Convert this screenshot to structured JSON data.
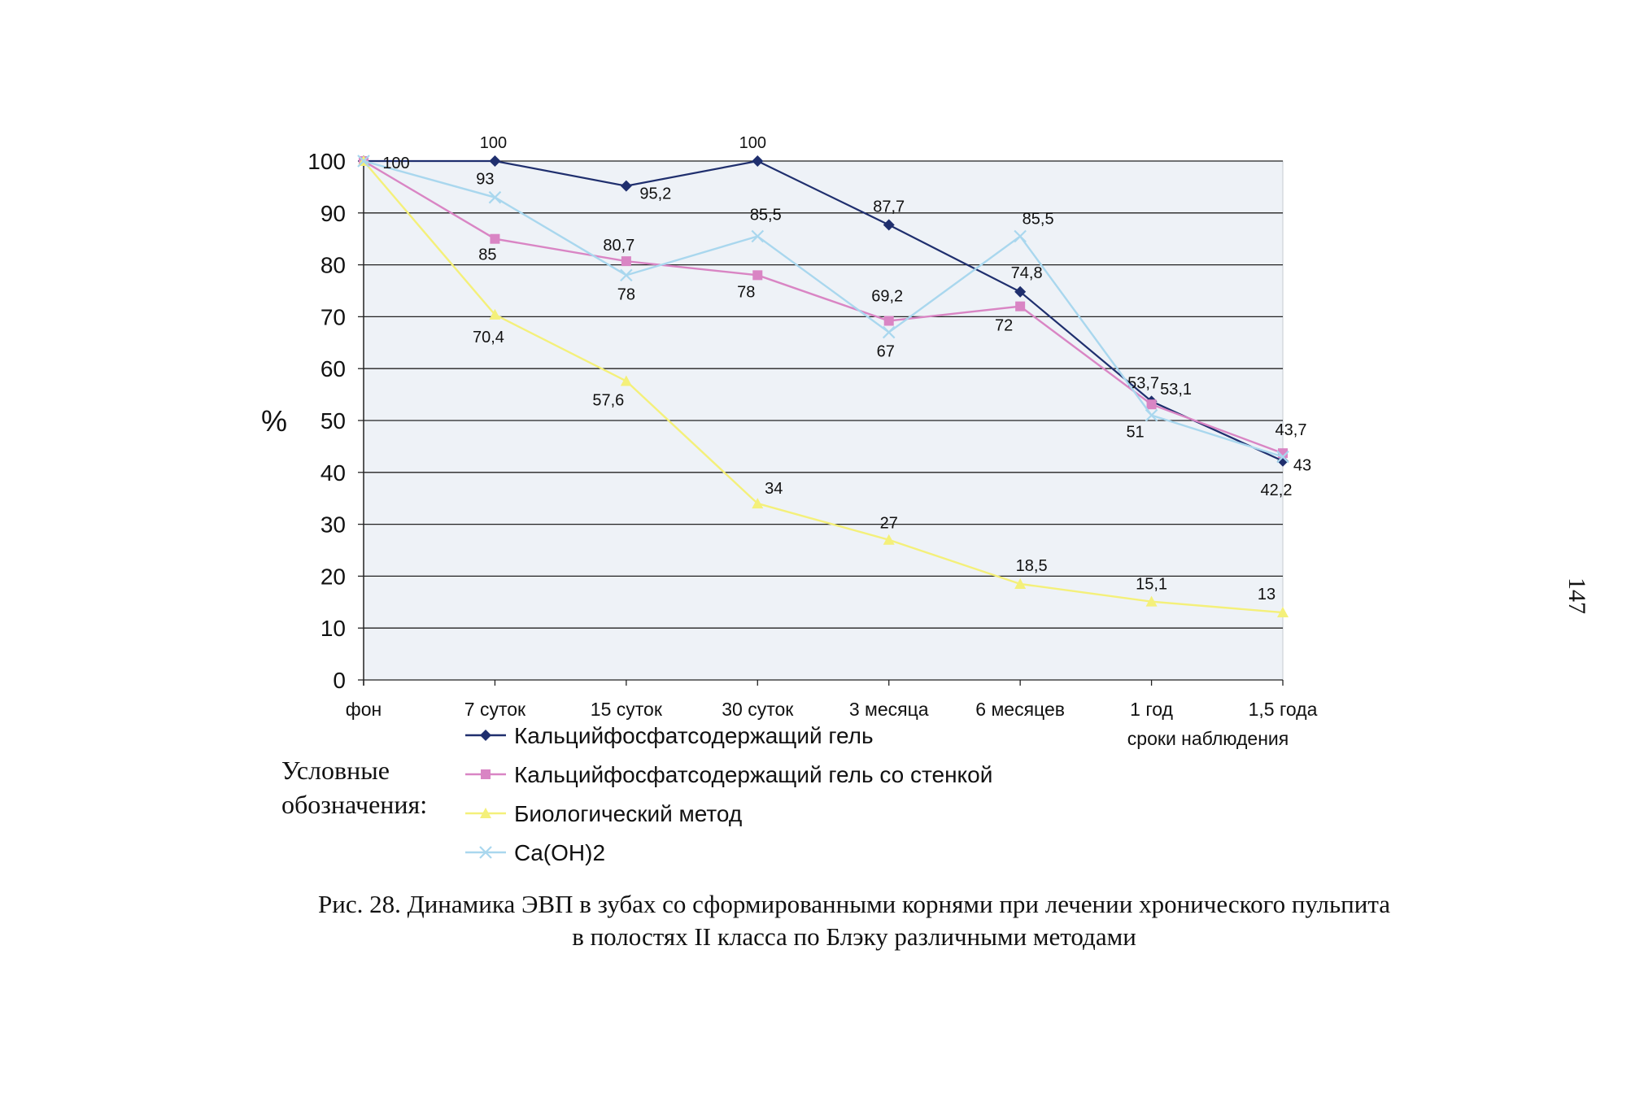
{
  "page_number": "147",
  "legend_title_lines": [
    "Условные",
    "обозначения:"
  ],
  "caption": {
    "line1": "Рис. 28. Динамика ЭВП в зубах со сформированными корнями при лечении хронического пульпита",
    "line2": "в полостях II класса по Блэку различными методами"
  },
  "chart_data": {
    "type": "line",
    "title": "",
    "xlabel": "сроки наблюдения",
    "ylabel": "%",
    "ylim": [
      0,
      100
    ],
    "yticks": [
      0,
      10,
      20,
      30,
      40,
      50,
      60,
      70,
      80,
      90,
      100
    ],
    "grid": "horizontal",
    "legend_position": "bottom-left",
    "categories": [
      "фон",
      "7 суток",
      "15 суток",
      "30 суток",
      "3 месяца",
      "6 месяцев",
      "1 год",
      "1,5 года"
    ],
    "series": [
      {
        "name": "Кальцийфосфатсодержащий гель",
        "color": "#1f2f6e",
        "marker": "diamond",
        "values": [
          100,
          100,
          95.2,
          100,
          87.7,
          74.8,
          53.7,
          42.2
        ],
        "labels": [
          "",
          "100",
          "95,2",
          "100",
          "87,7",
          "74,8",
          "53,7",
          "42,2"
        ]
      },
      {
        "name": "Кальцийфосфатсодержащий гель со стенкой",
        "color": "#d985c4",
        "marker": "square",
        "values": [
          100,
          85,
          80.7,
          78,
          69.2,
          72,
          53.1,
          43.7
        ],
        "labels": [
          "",
          "85",
          "80,7",
          "78",
          "69,2",
          "72",
          "53,1",
          "43,7"
        ]
      },
      {
        "name": "Биологический метод",
        "color": "#f4f07a",
        "marker": "triangle",
        "values": [
          100,
          70.4,
          57.6,
          34,
          27,
          18.5,
          15.1,
          13
        ],
        "labels": [
          "",
          "70,4",
          "57,6",
          "34",
          "27",
          "18,5",
          "15,1",
          "13"
        ]
      },
      {
        "name": "Ca(OH)2",
        "color": "#a9d7ee",
        "marker": "x",
        "values": [
          100,
          93,
          78,
          85.5,
          67,
          85.5,
          51,
          43
        ],
        "labels": [
          "100",
          "93",
          "78",
          "85,5",
          "67",
          "85,5",
          "51",
          "43"
        ]
      }
    ]
  }
}
